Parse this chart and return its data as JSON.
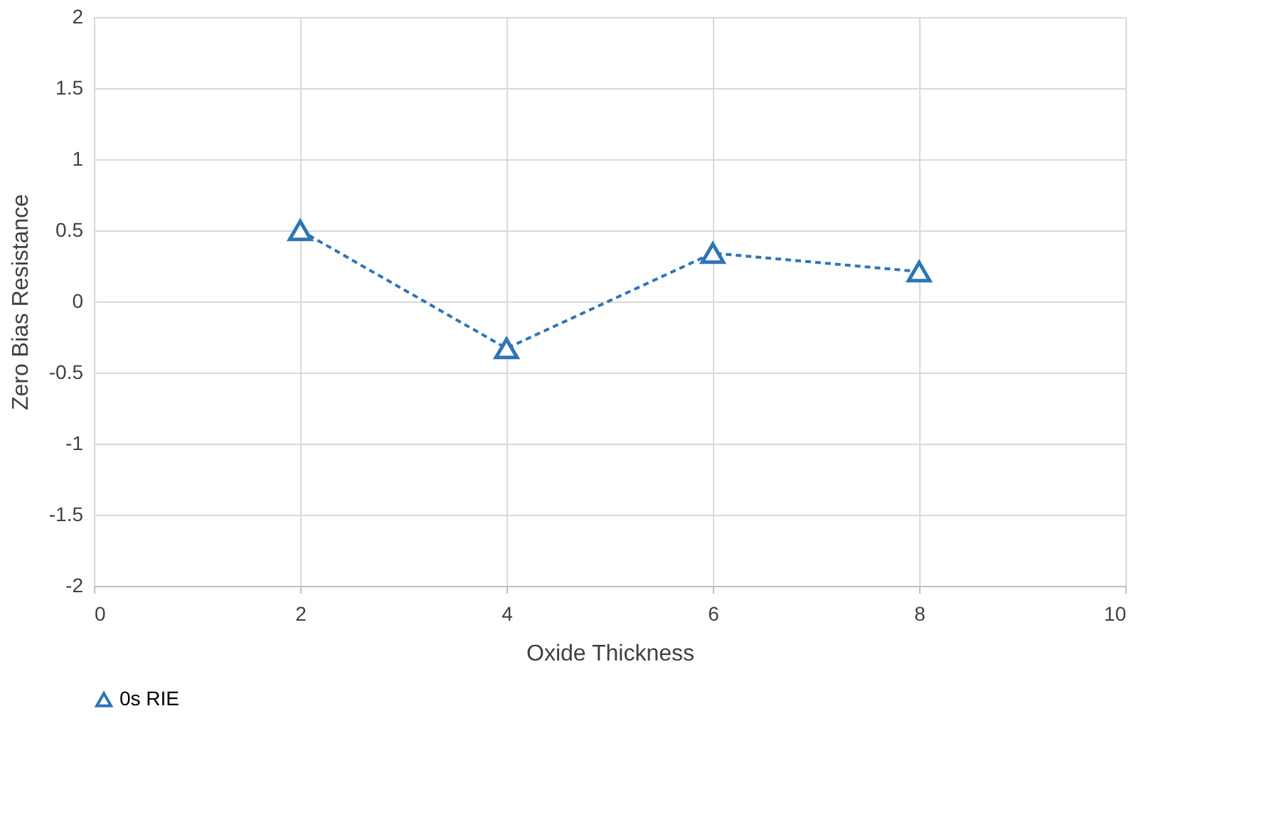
{
  "chart_data": {
    "type": "line",
    "xlabel": "Oxide Thickness",
    "ylabel": "Zero Bias Resistance",
    "x": [
      2,
      4,
      6,
      8
    ],
    "series": [
      {
        "name": "0s RIE",
        "color": "#2e75b6",
        "values": [
          0.5,
          -0.33,
          0.34,
          0.21
        ]
      }
    ],
    "xlim": [
      0,
      10
    ],
    "ylim": [
      -2,
      2
    ],
    "xticks": [
      0,
      2,
      4,
      6,
      8,
      10
    ],
    "yticks": [
      -2,
      -1.5,
      -1,
      -0.5,
      0,
      0.5,
      1,
      1.5,
      2
    ],
    "grid": true,
    "legend": "bottom",
    "marker": "triangle",
    "line_style": "dashed"
  }
}
